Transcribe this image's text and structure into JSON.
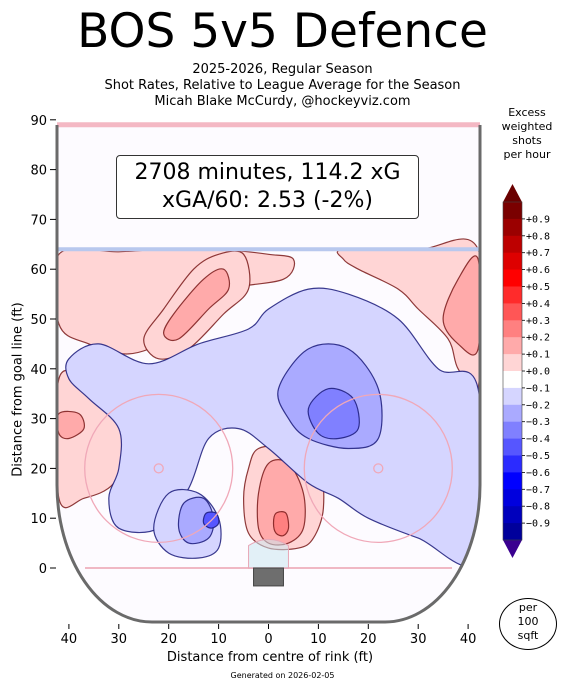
{
  "title": "BOS 5v5 Defence",
  "subtitle_lines": [
    "2025-2026, Regular Season",
    "Shot Rates, Relative to League Average for the Season",
    "Micah Blake McCurdy, @hockeyviz.com"
  ],
  "summary_box": {
    "line1": "2708 minutes, 114.2 xG",
    "line2": "xGA/60: 2.53 (-2%)"
  },
  "generated_note": "Generated on 2026-02-05",
  "per_area_badge": [
    "per",
    "100",
    "sqft"
  ],
  "colorbar": {
    "title_lines": [
      "Excess",
      "weighted",
      "shots",
      "per hour"
    ],
    "ticks": [
      "+0.9",
      "+0.8",
      "+0.7",
      "+0.6",
      "+0.5",
      "+0.4",
      "+0.3",
      "+0.2",
      "+0.1",
      "+0.0",
      "−0.1",
      "−0.2",
      "−0.3",
      "−0.4",
      "−0.5",
      "−0.6",
      "−0.7",
      "−0.8",
      "−0.9"
    ],
    "colors": [
      "#7a0000",
      "#9b0000",
      "#bd0000",
      "#de0000",
      "#ff0000",
      "#ff2b2b",
      "#ff5656",
      "#ff8080",
      "#ffaaaa",
      "#ffd5d5",
      "#ffffff",
      "#d5d5ff",
      "#aaaaff",
      "#8080ff",
      "#5656ff",
      "#2b2bff",
      "#0000ff",
      "#0000de",
      "#0000bd",
      "#00009b"
    ],
    "max_color": "#6a0000",
    "min_color": "#3a0090"
  },
  "chart_data": {
    "type": "heatmap",
    "xlabel": "Distance from centre of rink (ft)",
    "ylabel": "Distance from goal line (ft)",
    "xlim": [
      -42.5,
      42.5
    ],
    "ylim": [
      -11,
      89
    ],
    "x_ticks": [
      {
        "value": -40,
        "label": "40"
      },
      {
        "value": -30,
        "label": "30"
      },
      {
        "value": -20,
        "label": "20"
      },
      {
        "value": -10,
        "label": "10"
      },
      {
        "value": 0,
        "label": "0"
      },
      {
        "value": 10,
        "label": "10"
      },
      {
        "value": 20,
        "label": "20"
      },
      {
        "value": 30,
        "label": "30"
      },
      {
        "value": 40,
        "label": "40"
      }
    ],
    "y_ticks": [
      0,
      10,
      20,
      30,
      40,
      50,
      60,
      70,
      80,
      90
    ],
    "regions": [
      {
        "level": 0.1,
        "points": [
          [
            -42,
            63
          ],
          [
            -30,
            63.5
          ],
          [
            -20,
            64
          ],
          [
            -10,
            64
          ],
          [
            0,
            63
          ],
          [
            5,
            62
          ],
          [
            3,
            58
          ],
          [
            -8,
            56
          ],
          [
            -14,
            52
          ],
          [
            -20,
            46
          ],
          [
            -28,
            43
          ],
          [
            -36,
            45
          ],
          [
            -42,
            49
          ]
        ]
      },
      {
        "level": 0.1,
        "points": [
          [
            -21,
            52
          ],
          [
            -15,
            60
          ],
          [
            -10,
            63
          ],
          [
            -5,
            63
          ],
          [
            -4,
            56
          ],
          [
            -9,
            51
          ],
          [
            -16,
            44
          ],
          [
            -22,
            42
          ],
          [
            -25,
            46
          ]
        ]
      },
      {
        "level": 0.2,
        "points": [
          [
            -19,
            51
          ],
          [
            -13,
            58
          ],
          [
            -9,
            60
          ],
          [
            -8,
            56
          ],
          [
            -12,
            52
          ],
          [
            -18,
            46
          ],
          [
            -21,
            47
          ]
        ]
      },
      {
        "level": 0.1,
        "points": [
          [
            15,
            64
          ],
          [
            30,
            64
          ],
          [
            42,
            64
          ],
          [
            42,
            36
          ],
          [
            38,
            40
          ],
          [
            36,
            46
          ],
          [
            30,
            52
          ],
          [
            26,
            56
          ],
          [
            18,
            60
          ],
          [
            15,
            62
          ]
        ]
      },
      {
        "level": 0.2,
        "points": [
          [
            35,
            50
          ],
          [
            38,
            58
          ],
          [
            42,
            62
          ],
          [
            42,
            44
          ],
          [
            38,
            45
          ]
        ]
      },
      {
        "level": 0.1,
        "points": [
          [
            -42,
            38
          ],
          [
            -36,
            37
          ],
          [
            -30,
            32
          ],
          [
            -28,
            25
          ],
          [
            -31,
            17
          ],
          [
            -37,
            14
          ],
          [
            -42,
            14
          ]
        ]
      },
      {
        "level": 0.2,
        "points": [
          [
            -42,
            31
          ],
          [
            -38,
            31
          ],
          [
            -37,
            28
          ],
          [
            -40,
            26
          ],
          [
            -42,
            27
          ]
        ]
      },
      {
        "level": 0.1,
        "points": [
          [
            -2,
            24
          ],
          [
            4,
            24
          ],
          [
            10,
            20
          ],
          [
            11,
            12
          ],
          [
            9,
            6
          ],
          [
            6,
            4
          ],
          [
            0,
            4
          ],
          [
            -4,
            7
          ],
          [
            -5,
            14
          ],
          [
            -4,
            20
          ]
        ]
      },
      {
        "level": 0.2,
        "points": [
          [
            0,
            21
          ],
          [
            4,
            21
          ],
          [
            7,
            15
          ],
          [
            7,
            8
          ],
          [
            4,
            5
          ],
          [
            0,
            5
          ],
          [
            -2,
            8
          ],
          [
            -2,
            15
          ]
        ]
      },
      {
        "level": 0.3,
        "points": [
          [
            1.5,
            11
          ],
          [
            3.5,
            11
          ],
          [
            4,
            8
          ],
          [
            3,
            6.5
          ],
          [
            1.5,
            7
          ],
          [
            1,
            9
          ]
        ]
      },
      {
        "level": -0.1,
        "points": [
          [
            -34,
            45
          ],
          [
            -24,
            41
          ],
          [
            -14,
            45
          ],
          [
            -4,
            48
          ],
          [
            0,
            52
          ],
          [
            8,
            56
          ],
          [
            16,
            55
          ],
          [
            26,
            50
          ],
          [
            34,
            40
          ],
          [
            42,
            36
          ],
          [
            42,
            2
          ],
          [
            30,
            6
          ],
          [
            20,
            10
          ],
          [
            14,
            14
          ],
          [
            8,
            17
          ],
          [
            0,
            24
          ],
          [
            -6,
            28
          ],
          [
            -12,
            26
          ],
          [
            -16,
            16
          ],
          [
            -22,
            8
          ],
          [
            -30,
            8
          ],
          [
            -32,
            14
          ],
          [
            -30,
            20
          ],
          [
            -30,
            28
          ],
          [
            -36,
            34
          ],
          [
            -40,
            38
          ],
          [
            -40,
            42
          ]
        ]
      },
      {
        "level": -0.1,
        "points": [
          [
            -20,
            15
          ],
          [
            -14,
            15
          ],
          [
            -10,
            10
          ],
          [
            -10,
            4
          ],
          [
            -14,
            2
          ],
          [
            -20,
            3
          ],
          [
            -23,
            8
          ]
        ]
      },
      {
        "level": -0.2,
        "points": [
          [
            2,
            36
          ],
          [
            8,
            44
          ],
          [
            16,
            44
          ],
          [
            22,
            36
          ],
          [
            22,
            26
          ],
          [
            16,
            24
          ],
          [
            8,
            26
          ],
          [
            4,
            30
          ]
        ]
      },
      {
        "level": -0.3,
        "points": [
          [
            8,
            32
          ],
          [
            12,
            36
          ],
          [
            17,
            34
          ],
          [
            18,
            28
          ],
          [
            14,
            26
          ],
          [
            10,
            27
          ]
        ]
      },
      {
        "level": -0.2,
        "points": [
          [
            -17,
            13
          ],
          [
            -13,
            14
          ],
          [
            -11,
            10
          ],
          [
            -12,
            6
          ],
          [
            -16,
            5
          ],
          [
            -18,
            8
          ]
        ]
      },
      {
        "level": -0.4,
        "points": [
          [
            -12.5,
            11
          ],
          [
            -10.5,
            11
          ],
          [
            -10,
            9
          ],
          [
            -11.5,
            8
          ],
          [
            -13,
            9
          ]
        ]
      }
    ],
    "rink_features": [
      "crease",
      "net",
      "faceoff-circles",
      "goal-line",
      "blue-line",
      "centre-line"
    ]
  }
}
